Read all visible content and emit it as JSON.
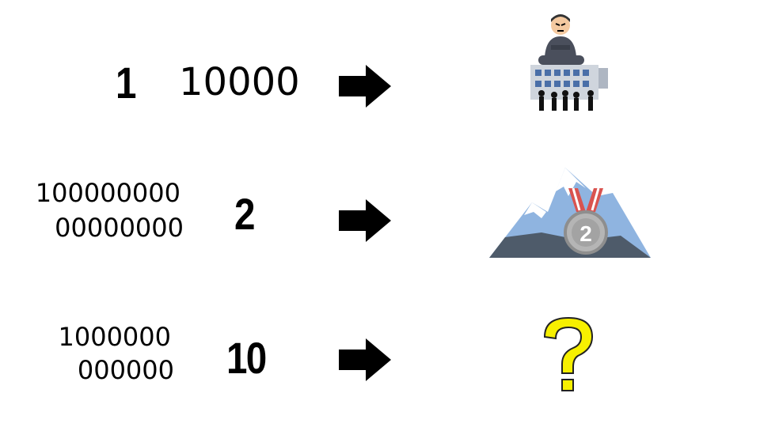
{
  "rows": [
    {
      "rank": "1",
      "number": "10000"
    },
    {
      "rank": "2",
      "number_lines": [
        "100000000",
        "00000000"
      ]
    },
    {
      "rank": "10",
      "number_lines": [
        "1000000",
        "000000"
      ]
    }
  ],
  "icons": {
    "row1": "boss-on-company-building-icon",
    "row2": "silver-medal-mountain-icon",
    "row3": "question-mark-icon"
  },
  "colors": {
    "text": "#000000",
    "arrow": "#000000",
    "question": "#f7f000",
    "medal": "#b5b5b5",
    "ribbon": "#d9534f",
    "mountain": "#8fb4e0",
    "building": "#4a6fa8"
  }
}
